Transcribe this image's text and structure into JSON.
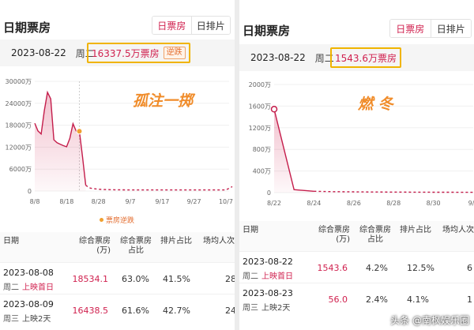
{
  "left": {
    "title": "日期票房",
    "tabs": [
      "日票房",
      "日排片"
    ],
    "date": "2023-08-22",
    "weekday": "周二",
    "gross": "16337.5万票房",
    "badge": "逆跌",
    "watermark": "孤注一掷",
    "legend": "票房逆跌",
    "chart_data": {
      "type": "line",
      "y_ticks": [
        "30000万",
        "24000万",
        "18000万",
        "12000万",
        "6000万",
        "0"
      ],
      "x_ticks": [
        "8/8",
        "8/18",
        "8/28",
        "9/7",
        "9/17",
        "9/27",
        "10/7"
      ],
      "ylim": [
        0,
        30000
      ],
      "x": [
        "8/8",
        "8/9",
        "8/10",
        "8/11",
        "8/12",
        "8/13",
        "8/14",
        "8/15",
        "8/16",
        "8/17",
        "8/18",
        "8/19",
        "8/20",
        "8/21",
        "8/22",
        "8/23",
        "8/24",
        "8/25",
        "8/26",
        "8/27",
        "8/28",
        "8/29",
        "8/30",
        "8/31",
        "9/1",
        "9/2",
        "9/3",
        "9/4",
        "9/5",
        "9/6",
        "9/7",
        "9/17",
        "9/27",
        "10/7",
        "10/9"
      ],
      "values": [
        18534.1,
        16438.5,
        15600,
        22000,
        27000,
        25200,
        14000,
        13200,
        12800,
        12400,
        12100,
        14400,
        18400,
        16400,
        16337.5,
        9300,
        1600,
        900,
        700,
        600,
        500,
        450,
        400,
        380,
        360,
        350,
        340,
        330,
        320,
        310,
        300,
        300,
        300,
        300,
        1200
      ],
      "marker_date": "8/22"
    },
    "headers": [
      [
        "日期"
      ],
      [
        "综合票房",
        "(万)"
      ],
      [
        "综合票房",
        "占比"
      ],
      [
        "排片占比"
      ],
      [
        "场均人次"
      ]
    ],
    "rows": [
      {
        "date": "2023-08-08",
        "weekday": "周二",
        "tag": "上映首日",
        "gross": "18534.1",
        "share": "63.0%",
        "screen": "41.5%",
        "avg": "28"
      },
      {
        "date": "2023-08-09",
        "weekday": "周三",
        "tag": "上映2天",
        "gross": "16438.5",
        "share": "61.6%",
        "screen": "42.7%",
        "avg": "24"
      }
    ]
  },
  "right": {
    "title": "日期票房",
    "tabs": [
      "日票房",
      "日排片"
    ],
    "date": "2023-08-22",
    "weekday": "周二",
    "gross": "1543.6万票房",
    "watermark": "燃  冬",
    "chart_data": {
      "type": "line",
      "y_ticks": [
        "2000万",
        "1600万",
        "1200万",
        "800万",
        "400万",
        "0"
      ],
      "x_ticks": [
        "8/22",
        "8/24",
        "8/26",
        "8/28",
        "8/30",
        "9/1"
      ],
      "ylim": [
        0,
        2000
      ],
      "x": [
        "8/22",
        "8/23",
        "8/24",
        "8/25",
        "8/26",
        "8/27",
        "8/28",
        "8/29",
        "8/30",
        "8/31",
        "9/1"
      ],
      "values": [
        1543.6,
        56.0,
        25,
        18,
        15,
        12,
        10,
        9,
        8,
        7,
        6
      ]
    },
    "headers": [
      [
        "日期"
      ],
      [
        "综合票房",
        "(万)"
      ],
      [
        "综合票房",
        "占比"
      ],
      [
        "排片占比"
      ],
      [
        "场均人次"
      ]
    ],
    "rows": [
      {
        "date": "2023-08-22",
        "weekday": "周二",
        "tag": "上映首日",
        "gross": "1543.6",
        "share": "4.2%",
        "screen": "12.5%",
        "avg": "6"
      },
      {
        "date": "2023-08-23",
        "weekday": "周三",
        "tag": "上映2天",
        "gross": "56.0",
        "share": "2.4%",
        "screen": "4.1%",
        "avg": "1"
      }
    ]
  },
  "footer": "头条 @南枫娱乐圈"
}
